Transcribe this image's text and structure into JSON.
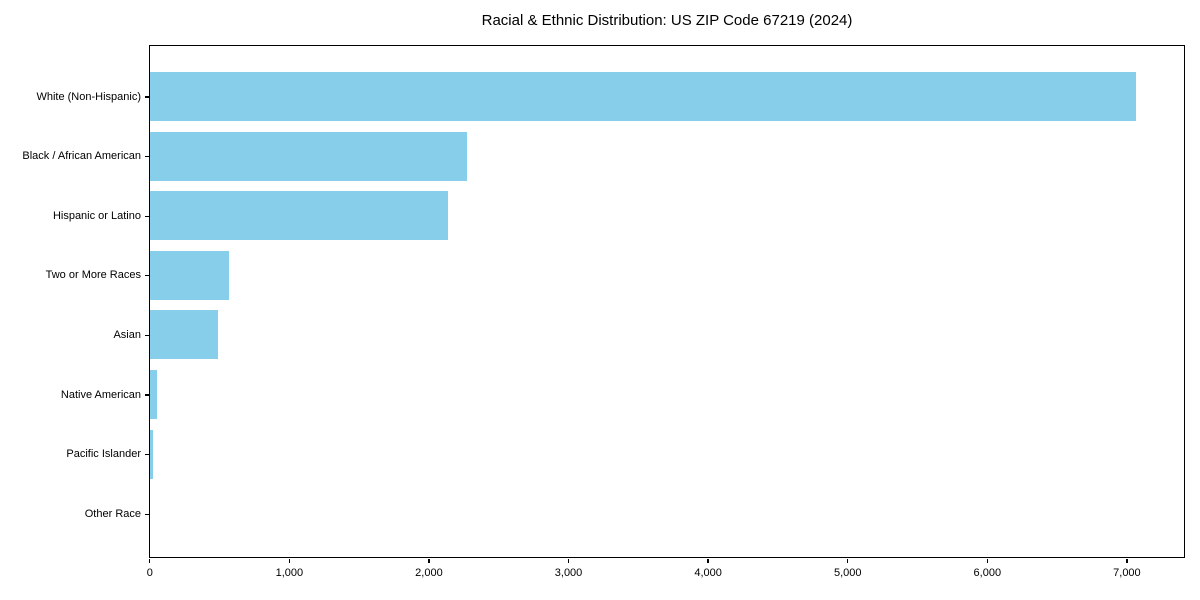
{
  "chart_data": {
    "type": "bar",
    "orientation": "horizontal",
    "title": "Racial & Ethnic Distribution: US ZIP Code 67219 (2024)",
    "categories": [
      "White (Non-Hispanic)",
      "Black / African American",
      "Hispanic or Latino",
      "Two or More Races",
      "Asian",
      "Native American",
      "Pacific Islander",
      "Other Race"
    ],
    "values": [
      7060,
      2270,
      2130,
      565,
      485,
      50,
      20,
      0
    ],
    "xlabel": "",
    "ylabel": "",
    "xlim": [
      0,
      7400
    ],
    "x_ticks": [
      0,
      1000,
      2000,
      3000,
      4000,
      5000,
      6000,
      7000
    ],
    "x_tick_labels": [
      "0",
      "1,000",
      "2,000",
      "3,000",
      "4,000",
      "5,000",
      "6,000",
      "7,000"
    ],
    "bar_color": "#87CEEB",
    "spine_color": "#000000",
    "text_color": "#000000",
    "grid": false,
    "legend": "none"
  }
}
